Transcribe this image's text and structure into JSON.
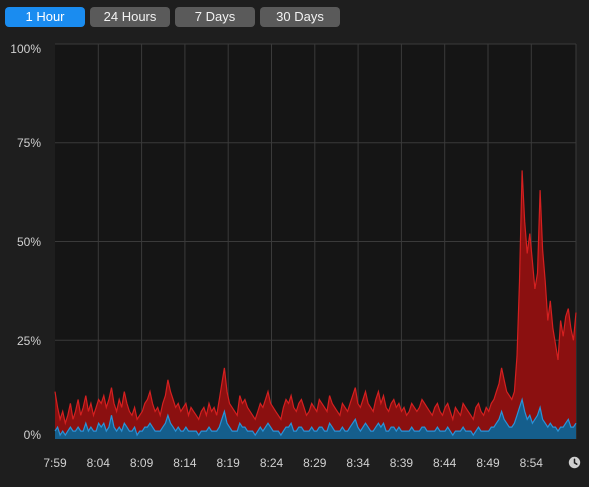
{
  "tabs": [
    {
      "label": "1 Hour",
      "active": true
    },
    {
      "label": "24 Hours",
      "active": false
    },
    {
      "label": "7 Days",
      "active": false
    },
    {
      "label": "30 Days",
      "active": false
    }
  ],
  "clock_icon": "clock-icon",
  "colors": {
    "background": "#1e1e1e",
    "plot_background": "#151515",
    "grid": "#3a3a3a",
    "accent": "#1a8cf0",
    "series_red": "#d42020",
    "series_red_fill": "#8b1010",
    "series_blue": "#2a93d8",
    "series_blue_fill": "#155e8c"
  },
  "chart_data": {
    "type": "area",
    "yticks": [
      "100%",
      "75%",
      "50%",
      "25%",
      "0%"
    ],
    "ylim": [
      0,
      100
    ],
    "xticks": [
      "7:59",
      "8:04",
      "8:09",
      "8:14",
      "8:19",
      "8:24",
      "8:29",
      "8:34",
      "8:39",
      "8:44",
      "8:49",
      "8:54"
    ],
    "grid": true,
    "series": [
      {
        "color": "red",
        "values": [
          12,
          8,
          5,
          7,
          4,
          6,
          9,
          5,
          7,
          10,
          6,
          8,
          11,
          7,
          9,
          6,
          8,
          10,
          9,
          11,
          8,
          10,
          13,
          9,
          7,
          10,
          8,
          12,
          9,
          7,
          6,
          8,
          5,
          6,
          7,
          9,
          10,
          12,
          9,
          7,
          8,
          6,
          9,
          11,
          15,
          12,
          10,
          8,
          9,
          7,
          8,
          9,
          6,
          8,
          7,
          6,
          5,
          7,
          8,
          6,
          9,
          7,
          8,
          6,
          10,
          14,
          18,
          12,
          9,
          8,
          7,
          6,
          11,
          9,
          10,
          8,
          7,
          6,
          5,
          7,
          9,
          8,
          10,
          12,
          9,
          8,
          7,
          6,
          5,
          8,
          10,
          9,
          11,
          8,
          7,
          9,
          10,
          8,
          6,
          7,
          9,
          8,
          7,
          10,
          9,
          8,
          7,
          11,
          9,
          8,
          7,
          6,
          9,
          8,
          7,
          9,
          11,
          13,
          9,
          8,
          10,
          12,
          9,
          8,
          7,
          10,
          12,
          9,
          11,
          8,
          7,
          9,
          10,
          8,
          9,
          7,
          8,
          6,
          7,
          9,
          8,
          7,
          8,
          10,
          9,
          8,
          7,
          6,
          8,
          9,
          7,
          6,
          8,
          9,
          7,
          5,
          8,
          7,
          6,
          9,
          8,
          7,
          6,
          5,
          8,
          9,
          7,
          6,
          8,
          7,
          9,
          10,
          12,
          14,
          18,
          15,
          12,
          11,
          10,
          12,
          21,
          40,
          68,
          55,
          47,
          52,
          45,
          38,
          42,
          63,
          48,
          40,
          30,
          35,
          28,
          24,
          20,
          30,
          26,
          31,
          33,
          28,
          25,
          32
        ]
      },
      {
        "color": "blue",
        "values": [
          2,
          3,
          1,
          2,
          1,
          2,
          3,
          2,
          2,
          3,
          2,
          2,
          4,
          2,
          3,
          2,
          2,
          4,
          3,
          4,
          2,
          3,
          6,
          3,
          2,
          3,
          2,
          4,
          3,
          2,
          2,
          3,
          1,
          2,
          2,
          3,
          3,
          4,
          3,
          2,
          2,
          2,
          3,
          4,
          6,
          4,
          3,
          2,
          3,
          2,
          2,
          3,
          2,
          2,
          2,
          2,
          1,
          2,
          2,
          2,
          3,
          2,
          2,
          2,
          3,
          5,
          7,
          4,
          3,
          2,
          2,
          2,
          4,
          3,
          3,
          2,
          2,
          2,
          1,
          2,
          3,
          2,
          3,
          4,
          3,
          2,
          2,
          2,
          1,
          2,
          3,
          3,
          4,
          2,
          2,
          3,
          3,
          2,
          2,
          2,
          3,
          2,
          2,
          3,
          3,
          2,
          2,
          4,
          3,
          2,
          2,
          2,
          3,
          2,
          2,
          3,
          4,
          5,
          3,
          2,
          3,
          4,
          3,
          2,
          2,
          3,
          4,
          3,
          4,
          2,
          2,
          3,
          3,
          2,
          3,
          2,
          2,
          2,
          2,
          3,
          2,
          2,
          2,
          3,
          3,
          2,
          2,
          2,
          2,
          3,
          2,
          2,
          2,
          3,
          2,
          1,
          2,
          2,
          2,
          3,
          2,
          2,
          2,
          1,
          2,
          3,
          2,
          2,
          2,
          2,
          3,
          3,
          4,
          5,
          7,
          5,
          4,
          3,
          3,
          4,
          6,
          8,
          10,
          7,
          5,
          6,
          4,
          5,
          6,
          8,
          5,
          4,
          3,
          4,
          3,
          3,
          2,
          3,
          3,
          4,
          5,
          3,
          3,
          4
        ]
      }
    ]
  }
}
